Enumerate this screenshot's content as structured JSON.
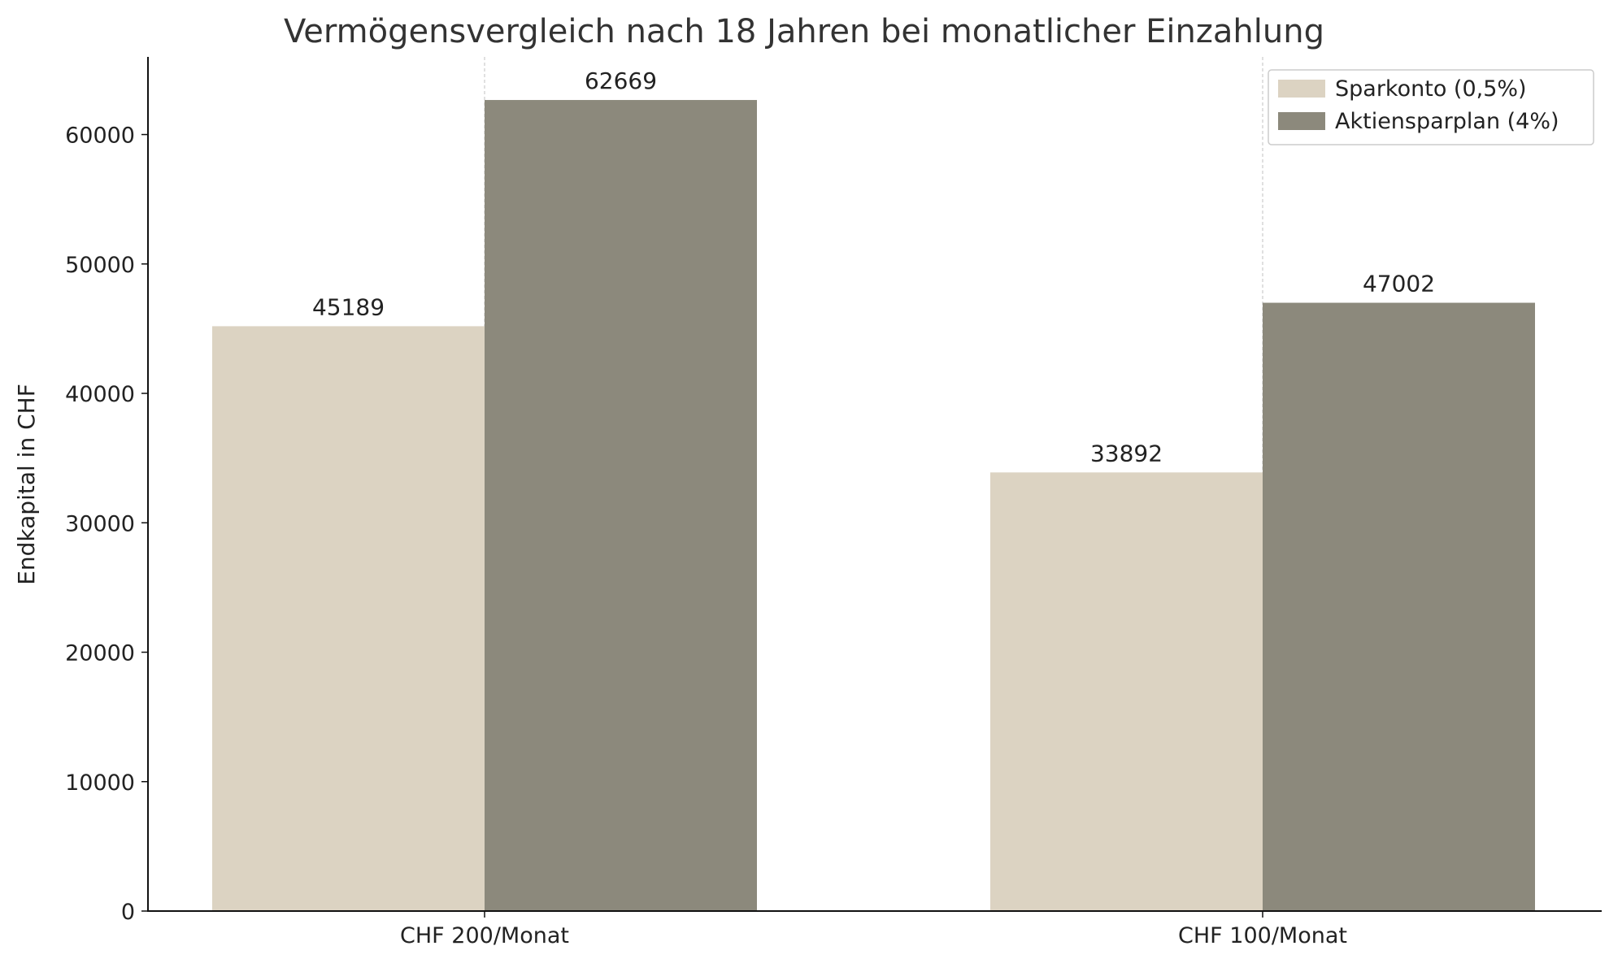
{
  "chart_data": {
    "type": "bar",
    "title": "Vermögensvergleich nach 18 Jahren bei monatlicher Einzahlung",
    "xlabel": "",
    "ylabel": "Endkapital in CHF",
    "categories": [
      "CHF 200/Monat",
      "CHF 100/Monat"
    ],
    "series": [
      {
        "name": "Sparkonto (0,5%)",
        "values": [
          45189,
          33892
        ],
        "color": "#dcd3c2"
      },
      {
        "name": "Aktiensparplan (4%)",
        "values": [
          62669,
          47002
        ],
        "color": "#8c897c"
      }
    ],
    "ylim": [
      0,
      66000
    ],
    "yticks": [
      0,
      10000,
      20000,
      30000,
      40000,
      50000,
      60000
    ],
    "ytick_labels": [
      "0",
      "10000",
      "20000",
      "30000",
      "40000",
      "50000",
      "60000"
    ],
    "value_labels": [
      [
        "45189",
        "33892"
      ],
      [
        "62669",
        "47002"
      ]
    ],
    "grid": "vertical dashed at category centers",
    "legend_position": "top-right"
  }
}
